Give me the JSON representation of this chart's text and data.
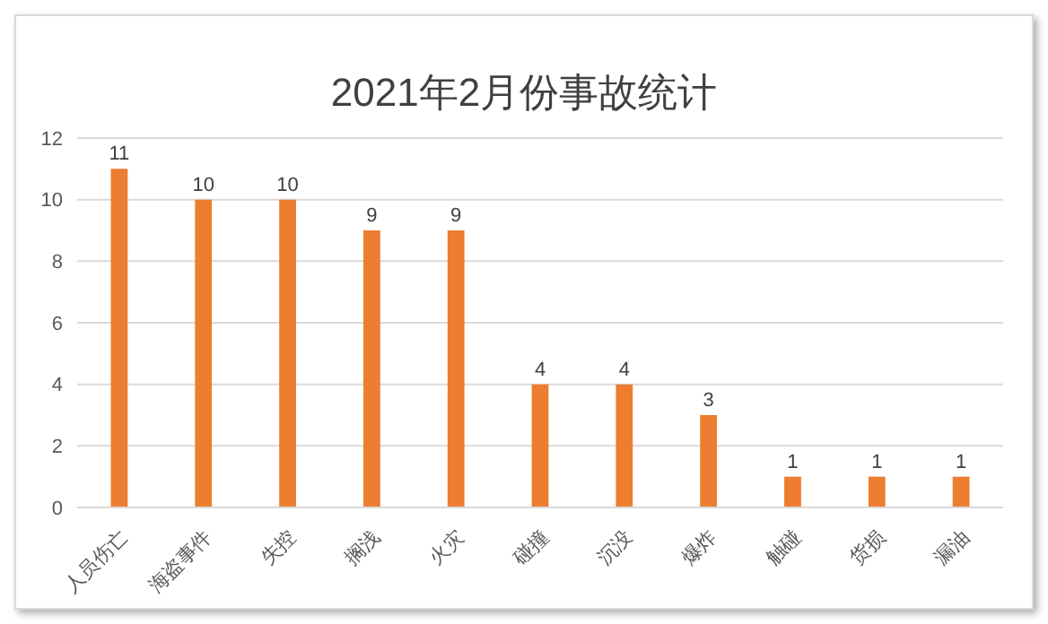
{
  "chart_data": {
    "type": "bar",
    "title": "2021年2月份事故统计",
    "categories": [
      "人员伤亡",
      "海盗事件",
      "失控",
      "搁浅",
      "火灾",
      "碰撞",
      "沉没",
      "爆炸",
      "触碰",
      "货损",
      "漏油"
    ],
    "values": [
      11,
      10,
      10,
      9,
      9,
      4,
      4,
      3,
      1,
      1,
      1
    ],
    "color": "#ed7d31",
    "ylim": [
      0,
      12
    ],
    "yticks": [
      0,
      2,
      4,
      6,
      8,
      10,
      12
    ],
    "grid": "y",
    "data_labels": true
  }
}
